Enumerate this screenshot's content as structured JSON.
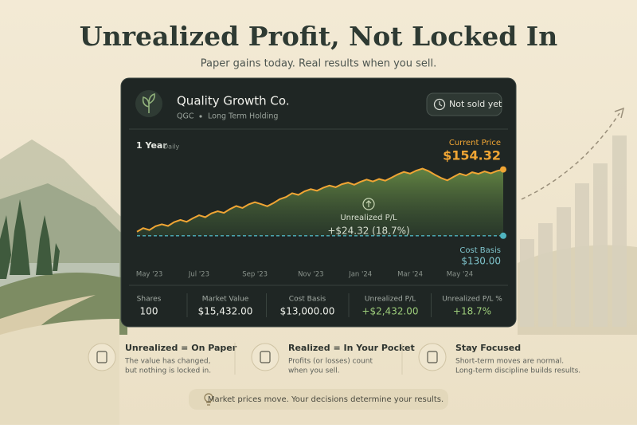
{
  "header": {
    "title": "Unrealized Profit, Not Locked In",
    "subtitle": "Paper gains today. Real results when you sell."
  },
  "card": {
    "company": "Quality Growth Co.",
    "ticker": "QGC",
    "holding": "Long Term Holding",
    "badge": "Not sold yet",
    "range": "1 Year",
    "interval": "Daily"
  },
  "chart_data": {
    "type": "line",
    "categories": [
      null,
      null,
      "May '23",
      null,
      null,
      null,
      null,
      null,
      null,
      null,
      "Jul '23",
      null,
      null,
      null,
      null,
      null,
      null,
      null,
      null,
      "Sep '23",
      null,
      null,
      null,
      null,
      null,
      null,
      null,
      null,
      "Nov '23",
      null,
      null,
      null,
      null,
      null,
      null,
      null,
      "Jan '24",
      null,
      null,
      null,
      null,
      null,
      null,
      null,
      "Mar '24",
      null,
      null,
      null,
      null,
      null,
      null,
      null,
      "May '24",
      null,
      null,
      null,
      null,
      null,
      null,
      null
    ],
    "series": [
      {
        "name": "Price",
        "color": "#f0a534",
        "values": [
          131.5,
          132.8,
          132.1,
          133.5,
          134.2,
          133.6,
          135.0,
          135.8,
          135.1,
          136.4,
          137.5,
          136.8,
          138.2,
          139.0,
          138.4,
          139.8,
          140.9,
          140.2,
          141.5,
          142.3,
          141.6,
          140.8,
          142.0,
          143.4,
          144.2,
          145.6,
          145.0,
          146.3,
          147.1,
          146.5,
          147.6,
          148.4,
          147.8,
          148.9,
          149.5,
          148.7,
          149.8,
          150.6,
          149.9,
          150.8,
          150.2,
          151.3,
          152.5,
          153.4,
          152.8,
          153.9,
          154.6,
          153.7,
          152.4,
          151.2,
          150.3,
          151.6,
          152.8,
          152.1,
          153.3,
          152.7,
          153.6,
          152.9,
          153.8,
          154.32
        ]
      }
    ],
    "ylim": [
      120,
      158
    ],
    "current_price": {
      "title": "Current Price",
      "value": 154.32,
      "label": "$154.32"
    },
    "cost_basis": {
      "title": "Cost Basis",
      "value": 130,
      "label": "$130.00"
    },
    "annotation": {
      "title": "Unrealized P/L",
      "text": "+$24.32 (18.7%)"
    }
  },
  "stats": [
    {
      "label": "Shares",
      "value": "100"
    },
    {
      "label": "Market Value",
      "value": "$15,432.00"
    },
    {
      "label": "Cost Basis",
      "value": "$13,000.00"
    },
    {
      "label": "Unrealized P/L",
      "value": "+$2,432.00"
    },
    {
      "label": "Unrealized P/L %",
      "value": "+18.7%"
    }
  ],
  "tips": [
    {
      "title": "Unrealized = On Paper",
      "lines": [
        "The value has changed,",
        "but nothing is locked in."
      ]
    },
    {
      "title": "Realized = In Your Pocket",
      "lines": [
        "Profits (or losses) count",
        "when you sell."
      ]
    },
    {
      "title": "Stay Focused",
      "lines": [
        "Short-term moves are normal.",
        "Long-term discipline builds results."
      ]
    }
  ],
  "footer": {
    "text": "Market prices move. Your decisions determine your results."
  }
}
